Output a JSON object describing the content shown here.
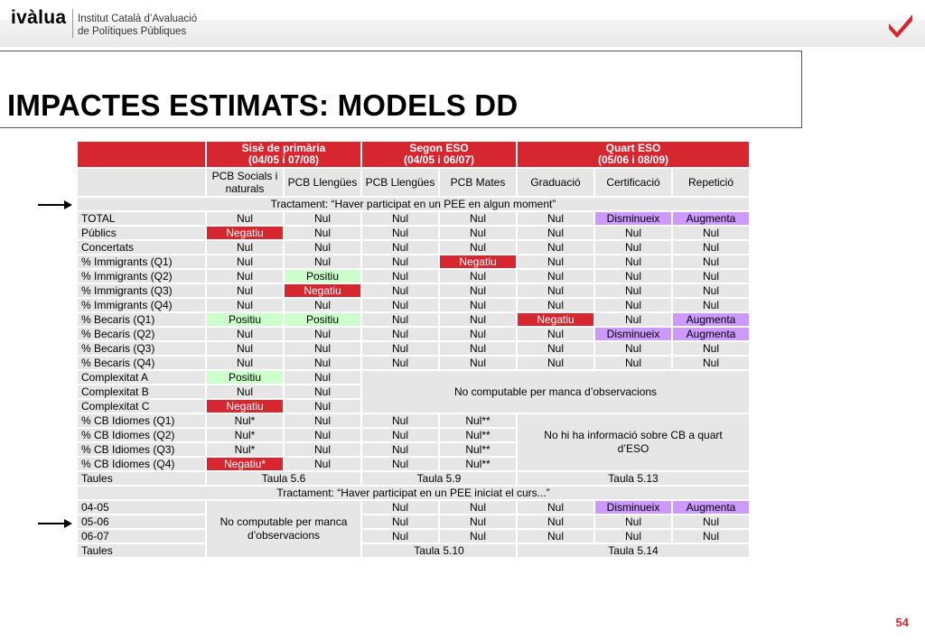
{
  "logo": {
    "brand": "ivàlua",
    "institute_line1": "Institut Català d’Avaluació",
    "institute_line2": "de Polítiques Públiques"
  },
  "title": "IMPACTES ESTIMATS: MODELS DD",
  "page_number": "54",
  "colors": {
    "negative": "#d6262f",
    "positive": "#ccffcc",
    "purple": "#cc99ff",
    "cell": "#e6e6e6"
  },
  "table": {
    "groups": [
      {
        "line1": "Sisè de primària",
        "line2": "(04/05 i 07/08)"
      },
      {
        "line1": "Segon ESO",
        "line2": "(04/05 i 06/07)"
      },
      {
        "line1": "Quart ESO",
        "line2": "(05/06 i 08/09)"
      }
    ],
    "subheaders": [
      "PCB Socials i naturals",
      "PCB Llengües",
      "PCB Llengües",
      "PCB Mates",
      "Graduació",
      "Certificació",
      "Repetició"
    ],
    "treatment1": "Tractament: “Haver participat en un PEE en algun moment”",
    "treatment2": "Tractament: “Haver participat en un PEE iniciat el curs...”",
    "rows1": [
      {
        "label": "TOTAL",
        "cells": [
          "Nul",
          "Nul",
          "Nul",
          "Nul",
          "Nul",
          "Disminueix",
          "Augmenta"
        ]
      },
      {
        "label": "Públics",
        "cells": [
          "Negatiu",
          "Nul",
          "Nul",
          "Nul",
          "Nul",
          "Nul",
          "Nul"
        ]
      },
      {
        "label": "Concertats",
        "cells": [
          "Nul",
          "Nul",
          "Nul",
          "Nul",
          "Nul",
          "Nul",
          "Nul"
        ]
      },
      {
        "label": "% Immigrants (Q1)",
        "cells": [
          "Nul",
          "Nul",
          "Nul",
          "Negatiu",
          "Nul",
          "Nul",
          "Nul"
        ]
      },
      {
        "label": "% Immigrants (Q2)",
        "cells": [
          "Nul",
          "Positiu",
          "Nul",
          "Nul",
          "Nul",
          "Nul",
          "Nul"
        ]
      },
      {
        "label": "% Immigrants (Q3)",
        "cells": [
          "Nul",
          "Negatiu",
          "Nul",
          "Nul",
          "Nul",
          "Nul",
          "Nul"
        ]
      },
      {
        "label": "% Immigrants (Q4)",
        "cells": [
          "Nul",
          "Nul",
          "Nul",
          "Nul",
          "Nul",
          "Nul",
          "Nul"
        ]
      },
      {
        "label": "% Becaris (Q1)",
        "cells": [
          "Positiu",
          "Positiu",
          "Nul",
          "Nul",
          "Negatiu",
          "Nul",
          "Augmenta"
        ]
      },
      {
        "label": "% Becaris (Q2)",
        "cells": [
          "Nul",
          "Nul",
          "Nul",
          "Nul",
          "Nul",
          "Disminueix",
          "Augmenta"
        ]
      },
      {
        "label": "% Becaris (Q3)",
        "cells": [
          "Nul",
          "Nul",
          "Nul",
          "Nul",
          "Nul",
          "Nul",
          "Nul"
        ]
      },
      {
        "label": "% Becaris (Q4)",
        "cells": [
          "Nul",
          "Nul",
          "Nul",
          "Nul",
          "Nul",
          "Nul",
          "Nul"
        ]
      }
    ],
    "complex_rows": [
      {
        "label": "Complexitat A",
        "cells": [
          "Positiu",
          "Nul"
        ]
      },
      {
        "label": "Complexitat B",
        "cells": [
          "Nul",
          "Nul"
        ]
      },
      {
        "label": "Complexitat C",
        "cells": [
          "Negatiu",
          "Nul"
        ]
      }
    ],
    "complex_note": "No computable per manca d’observacions",
    "cb_rows": [
      {
        "label": "% CB Idiomes (Q1)",
        "cells": [
          "Nul*",
          "Nul",
          "Nul",
          "Nul**"
        ]
      },
      {
        "label": "% CB Idiomes (Q2)",
        "cells": [
          "Nul*",
          "Nul",
          "Nul",
          "Nul**"
        ]
      },
      {
        "label": "% CB Idiomes (Q3)",
        "cells": [
          "Nul*",
          "Nul",
          "Nul",
          "Nul**"
        ]
      },
      {
        "label": "% CB Idiomes (Q4)",
        "cells": [
          "Negatiu*",
          "Nul",
          "Nul",
          "Nul**"
        ]
      }
    ],
    "cb_note": "No hi ha informació sobre CB a quart d’ESO",
    "taules1": {
      "label": "Taules",
      "t1": "Taula 5.6",
      "t2": "Taula 5.9",
      "t3": "Taula 5.13"
    },
    "rows2": [
      {
        "label": "04-05",
        "cells": [
          "Nul",
          "Nul",
          "Nul",
          "Disminueix",
          "Augmenta"
        ]
      },
      {
        "label": "05-06",
        "cells": [
          "Nul",
          "Nul",
          "Nul",
          "Nul",
          "Nul"
        ]
      },
      {
        "label": "06-07",
        "cells": [
          "Nul",
          "Nul",
          "Nul",
          "Nul",
          "Nul"
        ]
      }
    ],
    "rows2_note": "No computable per manca d’observacions",
    "taules2": {
      "label": "Taules",
      "t2": "Taula 5.10",
      "t3": "Taula 5.14"
    }
  }
}
